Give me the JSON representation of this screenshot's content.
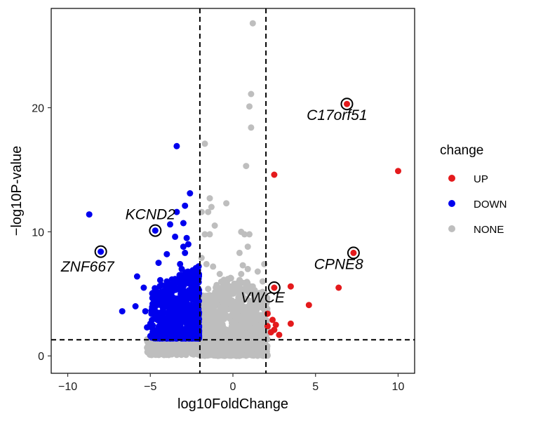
{
  "chart_data": {
    "type": "scatter",
    "title": "",
    "xlabel": "log10FoldChange",
    "ylabel": "-log10P-value",
    "xlim": [
      -11,
      11
    ],
    "ylim": [
      -1.4,
      28
    ],
    "xticks": [
      -10,
      -5,
      0,
      5,
      10
    ],
    "yticks": [
      0,
      10,
      20
    ],
    "thresholds": {
      "x": [
        -2,
        2
      ],
      "y": [
        1.3
      ]
    },
    "legend": {
      "title": "change",
      "entries": [
        {
          "label": "UP",
          "color": "#e41a1c"
        },
        {
          "label": "DOWN",
          "color": "#0000ee"
        },
        {
          "label": "NONE",
          "color": "#bebebe"
        }
      ]
    },
    "series": [
      {
        "name": "UP",
        "color": "#e41a1c",
        "points": [
          [
            2.5,
            14.6
          ],
          [
            10.0,
            14.9
          ],
          [
            6.9,
            20.3
          ],
          [
            7.3,
            8.3
          ],
          [
            2.5,
            5.5
          ],
          [
            3.5,
            5.6
          ],
          [
            6.4,
            5.5
          ],
          [
            4.6,
            4.1
          ],
          [
            2.1,
            3.4
          ],
          [
            3.5,
            2.6
          ],
          [
            2.4,
            2.9
          ],
          [
            2.1,
            2.4
          ],
          [
            2.5,
            2.1
          ],
          [
            2.3,
            1.9
          ],
          [
            2.8,
            1.7
          ],
          [
            2.6,
            2.5
          ]
        ]
      },
      {
        "name": "DOWN",
        "color": "#0000ee",
        "points": [
          [
            -8.7,
            11.4
          ],
          [
            -8.0,
            8.4
          ],
          [
            -4.7,
            10.1
          ],
          [
            -3.4,
            16.9
          ],
          [
            -2.6,
            13.1
          ],
          [
            -2.9,
            12.1
          ],
          [
            -3.4,
            11.6
          ],
          [
            -3.0,
            10.7
          ],
          [
            -3.8,
            10.6
          ],
          [
            -3.5,
            9.6
          ],
          [
            -2.8,
            9.5
          ],
          [
            -2.7,
            9.0
          ],
          [
            -3.0,
            8.8
          ],
          [
            -2.9,
            8.3
          ],
          [
            -4.0,
            8.2
          ],
          [
            -4.5,
            7.5
          ],
          [
            -3.2,
            7.4
          ],
          [
            -3.1,
            7.0
          ],
          [
            -5.8,
            6.4
          ],
          [
            -5.4,
            5.5
          ],
          [
            -3.0,
            6.4
          ],
          [
            -3.5,
            6.2
          ],
          [
            -4.4,
            6.1
          ],
          [
            -4.0,
            6.0
          ],
          [
            -6.7,
            3.6
          ],
          [
            -5.9,
            4.0
          ],
          [
            -5.3,
            3.6
          ],
          [
            -5.0,
            2.6
          ],
          [
            -5.2,
            2.3
          ],
          [
            -5.0,
            1.6
          ],
          [
            -4.8,
            4.8
          ],
          [
            -4.2,
            4.8
          ],
          [
            -3.6,
            5.6
          ],
          [
            -2.5,
            6.0
          ],
          [
            -2.3,
            5.1
          ]
        ]
      },
      {
        "name": "NONE",
        "color": "#bebebe",
        "points": [
          [
            1.2,
            26.8
          ],
          [
            1.1,
            21.1
          ],
          [
            1.0,
            20.1
          ],
          [
            1.1,
            18.4
          ],
          [
            0.8,
            15.3
          ],
          [
            -1.7,
            17.1
          ],
          [
            -1.4,
            12.7
          ],
          [
            -1.3,
            12.0
          ],
          [
            -1.9,
            11.6
          ],
          [
            -1.5,
            11.6
          ],
          [
            -0.4,
            12.3
          ],
          [
            -1.1,
            10.5
          ],
          [
            -1.7,
            9.8
          ],
          [
            -1.4,
            9.8
          ],
          [
            0.5,
            10.0
          ],
          [
            0.7,
            9.8
          ],
          [
            1.0,
            9.8
          ],
          [
            0.9,
            8.8
          ],
          [
            0.4,
            8.3
          ],
          [
            -1.6,
            7.4
          ],
          [
            -1.9,
            7.9
          ],
          [
            -1.2,
            7.2
          ],
          [
            -0.8,
            6.6
          ],
          [
            0.9,
            7.0
          ],
          [
            0.6,
            7.3
          ],
          [
            1.9,
            7.4
          ],
          [
            1.5,
            6.8
          ],
          [
            -0.3,
            6.2
          ],
          [
            1.8,
            6.0
          ],
          [
            1.2,
            5.6
          ],
          [
            0.5,
            6.6
          ],
          [
            -1.5,
            5.4
          ],
          [
            1.9,
            5.1
          ],
          [
            1.9,
            2.0
          ],
          [
            1.8,
            1.3
          ]
        ]
      }
    ],
    "labeled_genes": [
      {
        "name": "C17orf51",
        "x": 6.9,
        "y": 20.3,
        "label_x": 6.3,
        "label_y": 19.0
      },
      {
        "name": "KCND2",
        "x": -4.7,
        "y": 10.1,
        "label_x": -5.0,
        "label_y": 11.0
      },
      {
        "name": "ZNF667",
        "x": -8.0,
        "y": 8.4,
        "label_x": -8.8,
        "label_y": 6.8
      },
      {
        "name": "CPNE8",
        "x": 7.3,
        "y": 8.3,
        "label_x": 6.4,
        "label_y": 7.0
      },
      {
        "name": "VWCE",
        "x": 2.5,
        "y": 5.5,
        "label_x": 1.8,
        "label_y": 4.3
      }
    ]
  }
}
